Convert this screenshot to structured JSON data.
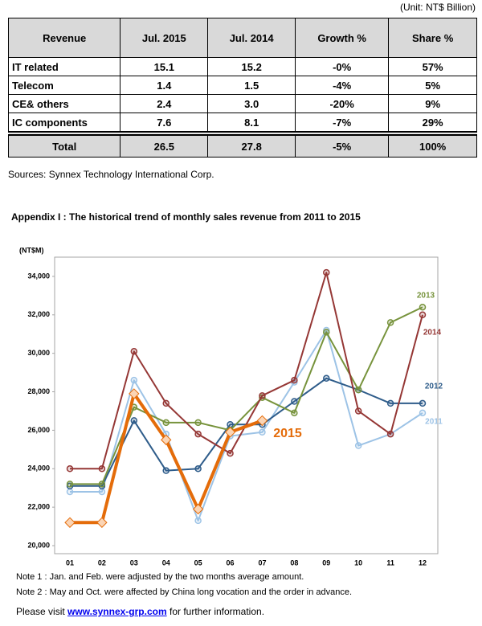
{
  "unit": "(Unit: NT$ Billion)",
  "table": {
    "header": [
      "Revenue",
      "Jul. 2015",
      "Jul. 2014",
      "Growth %",
      "Share %"
    ],
    "rows": [
      [
        "IT related",
        "15.1",
        "15.2",
        "-0%",
        "57%"
      ],
      [
        "Telecom",
        "1.4",
        "1.5",
        "-4%",
        "5%"
      ],
      [
        "CE& others",
        "2.4",
        "3.0",
        "-20%",
        "9%"
      ],
      [
        "IC components",
        "7.6",
        "8.1",
        "-7%",
        "29%"
      ]
    ],
    "total": [
      "Total",
      "26.5",
      "27.8",
      "-5%",
      "100%"
    ]
  },
  "sources": "Sources: Synnex Technology International Corp.",
  "appendix_title": "Appendix I : The historical trend of monthly sales revenue from 2011 to 2015",
  "chart_data": {
    "type": "line",
    "y_label": "(NT$M)",
    "categories": [
      "01",
      "02",
      "03",
      "04",
      "05",
      "06",
      "07",
      "08",
      "09",
      "10",
      "11",
      "12"
    ],
    "ylim": [
      20000,
      35000
    ],
    "yticks": [
      {
        "value": 20000,
        "label": "20,000"
      },
      {
        "value": 22000,
        "label": "22,000"
      },
      {
        "value": 24000,
        "label": "24,000"
      },
      {
        "value": 26000,
        "label": "26,000"
      },
      {
        "value": 28000,
        "label": "28,000"
      },
      {
        "value": 30000,
        "label": "30,000"
      },
      {
        "value": 32000,
        "label": "32,000"
      },
      {
        "value": 34000,
        "label": "34,000"
      }
    ],
    "series": [
      {
        "name": "2011",
        "color": "#9dc3e6",
        "values": [
          22800,
          22800,
          28600,
          25800,
          21300,
          25700,
          25900,
          28500,
          31200,
          25200,
          25800,
          26900
        ]
      },
      {
        "name": "2012",
        "color": "#2e5c8a",
        "values": [
          23100,
          23100,
          26500,
          23900,
          24000,
          26300,
          26300,
          27500,
          28700,
          28100,
          27400,
          27400
        ]
      },
      {
        "name": "2013",
        "color": "#77933c",
        "values": [
          23200,
          23200,
          27200,
          26400,
          26400,
          26000,
          27700,
          26900,
          31100,
          28100,
          31600,
          32400
        ]
      },
      {
        "name": "2014",
        "color": "#953735",
        "values": [
          24000,
          24000,
          30100,
          27400,
          25800,
          24800,
          27800,
          28600,
          34200,
          27000,
          25800,
          32000
        ]
      },
      {
        "name": "2015",
        "color": "#e46c0a",
        "values": [
          21200,
          21200,
          27900,
          25500,
          21900,
          25900,
          26500,
          null,
          null,
          null,
          null,
          null
        ]
      }
    ]
  },
  "notes": [
    "Note 1 : Jan. and Feb. were adjusted by the two months average amount.",
    "Note 2 : May and Oct. were affected by China long vocation and the order in advance."
  ],
  "visit": {
    "before": "Please visit",
    "link": "www.synnex-grp.com",
    "after": "for further information."
  }
}
